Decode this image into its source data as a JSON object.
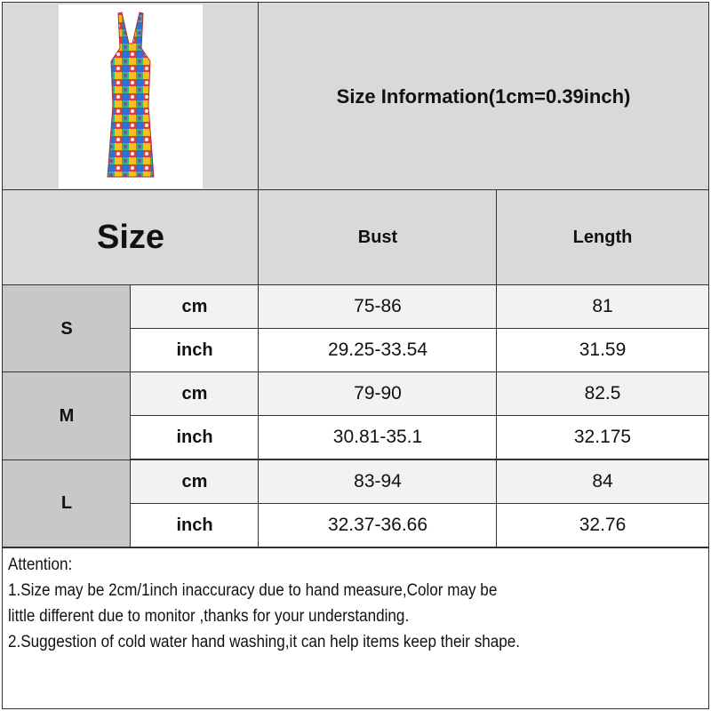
{
  "title": "Size Information(1cm=0.39inch)",
  "size_header": "Size",
  "columns": [
    "Bust",
    "Length"
  ],
  "rows": [
    {
      "size": "S",
      "cm": {
        "unit": "cm",
        "bust": "75-86",
        "length": "81"
      },
      "inch": {
        "unit": "inch",
        "bust": "29.25-33.54",
        "length": "31.59"
      }
    },
    {
      "size": "M",
      "cm": {
        "unit": "cm",
        "bust": "79-90",
        "length": "82.5"
      },
      "inch": {
        "unit": "inch",
        "bust": "30.81-35.1",
        "length": "32.175"
      }
    },
    {
      "size": "L",
      "cm": {
        "unit": "cm",
        "bust": "83-94",
        "length": "84"
      },
      "inch": {
        "unit": "inch",
        "bust": "32.37-36.66",
        "length": "32.76"
      }
    }
  ],
  "notes": [
    "Attention:",
    "1.Size may be 2cm/1inch inaccuracy due to hand measure,Color may be",
    "little different due to monitor ,thanks for your understanding.",
    "2.Suggestion of cold water hand washing,it can help items keep their shape."
  ]
}
